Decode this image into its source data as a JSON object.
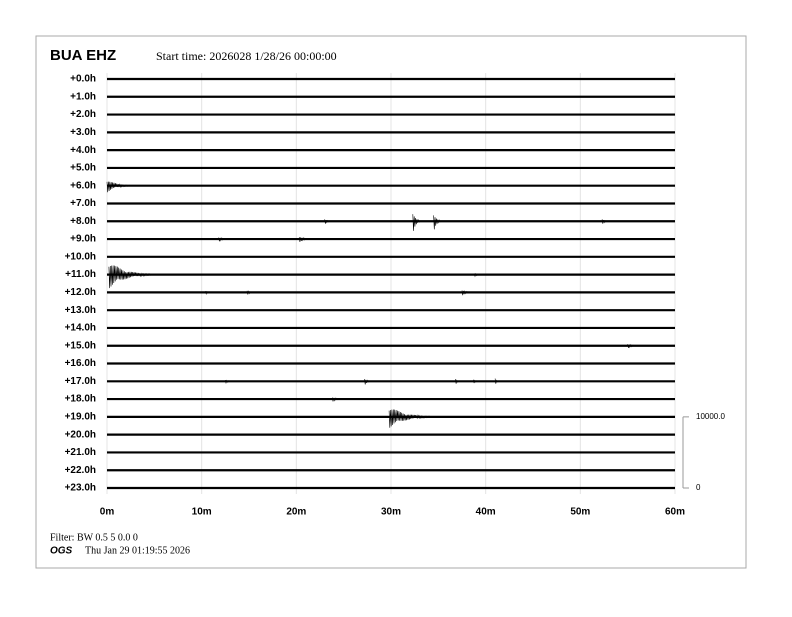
{
  "chart_data": {
    "type": "helicorder",
    "title": "BUA EHZ",
    "subtitle": "Start time: 2026028  1/28/26 00:00:00",
    "categories": [
      "+0.0h",
      "+1.0h",
      "+2.0h",
      "+3.0h",
      "+4.0h",
      "+5.0h",
      "+6.0h",
      "+7.0h",
      "+8.0h",
      "+9.0h",
      "+10.0h",
      "+11.0h",
      "+12.0h",
      "+13.0h",
      "+14.0h",
      "+15.0h",
      "+16.0h",
      "+17.0h",
      "+18.0h",
      "+19.0h",
      "+20.0h",
      "+21.0h",
      "+22.0h",
      "+23.0h"
    ],
    "xlim": [
      0,
      60
    ],
    "xticks": [
      {
        "value": 0,
        "label": "0m"
      },
      {
        "value": 10,
        "label": "10m"
      },
      {
        "value": 20,
        "label": "20m"
      },
      {
        "value": 30,
        "label": "30m"
      },
      {
        "value": 40,
        "label": "40m"
      },
      {
        "value": 50,
        "label": "50m"
      },
      {
        "value": 60,
        "label": "60m"
      }
    ],
    "y2lim": [
      0,
      10000
    ],
    "y2ticks": [
      {
        "value": 10000,
        "label": "10000.0"
      },
      0
    ],
    "grid": true,
    "color": "#000000",
    "events": [
      {
        "row": 6,
        "x": 0,
        "duration": 2.5,
        "amplitude": 1000
      },
      {
        "row": 8,
        "x": 23,
        "duration": 0.6,
        "amplitude": 500
      },
      {
        "row": 8,
        "x": 32.3,
        "duration": 0.8,
        "amplitude": 1800
      },
      {
        "row": 8,
        "x": 34.5,
        "duration": 0.8,
        "amplitude": 1500
      },
      {
        "row": 8,
        "x": 52.3,
        "duration": 0.6,
        "amplitude": 500
      },
      {
        "row": 9,
        "x": 11.8,
        "duration": 1,
        "amplitude": 400
      },
      {
        "row": 9,
        "x": 20.3,
        "duration": 1.2,
        "amplitude": 500
      },
      {
        "row": 11,
        "x": 0.2,
        "duration": 4.5,
        "amplitude": 2000
      },
      {
        "row": 11,
        "x": 38.8,
        "duration": 0.8,
        "amplitude": 300
      },
      {
        "row": 12,
        "x": 10.4,
        "duration": 0.6,
        "amplitude": 300
      },
      {
        "row": 12,
        "x": 14.8,
        "duration": 0.7,
        "amplitude": 400
      },
      {
        "row": 12,
        "x": 37.5,
        "duration": 1,
        "amplitude": 500
      },
      {
        "row": 15,
        "x": 55,
        "duration": 1,
        "amplitude": 400
      },
      {
        "row": 17,
        "x": 12.5,
        "duration": 0.8,
        "amplitude": 300
      },
      {
        "row": 17,
        "x": 27.2,
        "duration": 0.7,
        "amplitude": 600
      },
      {
        "row": 17,
        "x": 36.8,
        "duration": 0.4,
        "amplitude": 600
      },
      {
        "row": 17,
        "x": 38.7,
        "duration": 0.5,
        "amplitude": 400
      },
      {
        "row": 17,
        "x": 41,
        "duration": 0.3,
        "amplitude": 700
      },
      {
        "row": 18,
        "x": 23.8,
        "duration": 1,
        "amplitude": 400
      },
      {
        "row": 19,
        "x": 29.8,
        "duration": 4.5,
        "amplitude": 1600
      }
    ],
    "filter": "Filter: BW 0.5 5 0.0 0",
    "source": "OGS",
    "timestamp": "Thu Jan 29 01:19:55 2026"
  }
}
